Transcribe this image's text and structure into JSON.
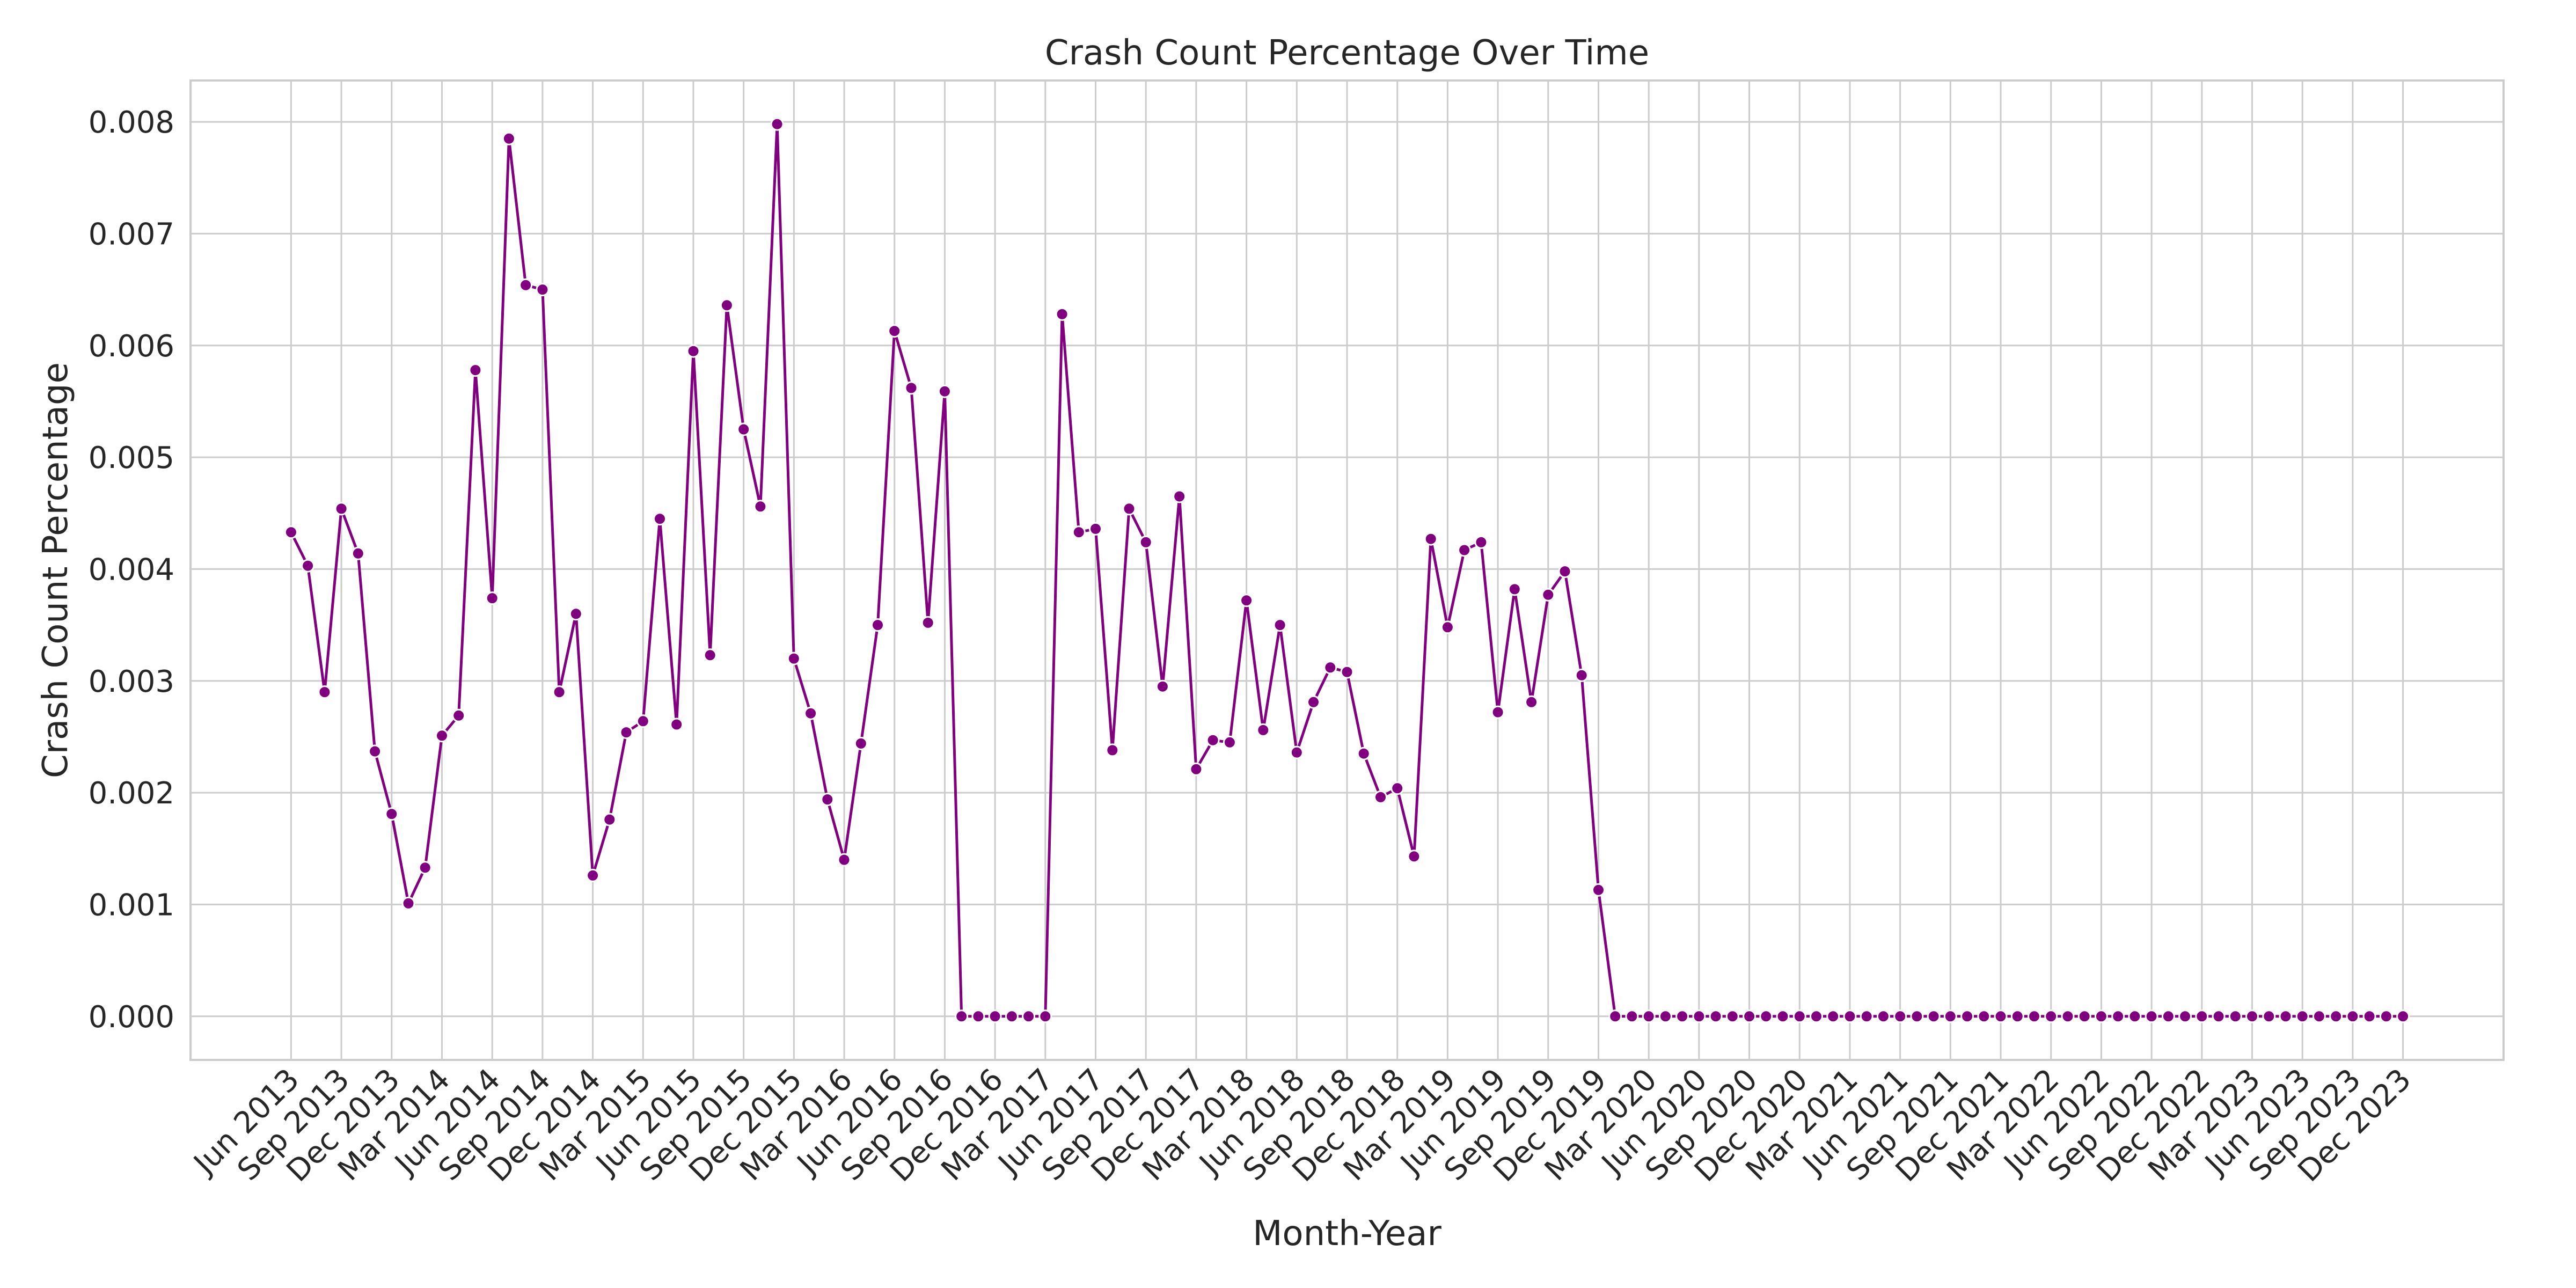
{
  "chart_data": {
    "type": "line",
    "title": "Crash Count Percentage Over Time",
    "xlabel": "Month-Year",
    "ylabel": "Crash Count Percentage",
    "ylim": [
      -0.00039,
      0.00837
    ],
    "xlim": [
      "2012-12",
      "2024-06"
    ],
    "y_ticks": [
      "0.000",
      "0.001",
      "0.002",
      "0.003",
      "0.004",
      "0.005",
      "0.006",
      "0.007",
      "0.008"
    ],
    "x_ticks": [
      "Jun 2013",
      "Sep 2013",
      "Dec 2013",
      "Mar 2014",
      "Jun 2014",
      "Sep 2014",
      "Dec 2014",
      "Mar 2015",
      "Jun 2015",
      "Sep 2015",
      "Dec 2015",
      "Mar 2016",
      "Jun 2016",
      "Sep 2016",
      "Dec 2016",
      "Mar 2017",
      "Jun 2017",
      "Sep 2017",
      "Dec 2017",
      "Mar 2018",
      "Jun 2018",
      "Sep 2018",
      "Dec 2018",
      "Mar 2019",
      "Jun 2019",
      "Sep 2019",
      "Dec 2019",
      "Mar 2020",
      "Jun 2020",
      "Sep 2020",
      "Dec 2020",
      "Mar 2021",
      "Jun 2021",
      "Sep 2021",
      "Dec 2021",
      "Mar 2022",
      "Jun 2022",
      "Sep 2022",
      "Dec 2022",
      "Mar 2023",
      "Jun 2023",
      "Sep 2023",
      "Dec 2023"
    ],
    "grid": true,
    "series": [
      {
        "color": "#800080",
        "x": [
          "2013-06",
          "2013-07",
          "2013-08",
          "2013-09",
          "2013-10",
          "2013-11",
          "2013-12",
          "2014-01",
          "2014-02",
          "2014-03",
          "2014-04",
          "2014-05",
          "2014-06",
          "2014-07",
          "2014-08",
          "2014-09",
          "2014-10",
          "2014-11",
          "2014-12",
          "2015-01",
          "2015-02",
          "2015-03",
          "2015-04",
          "2015-05",
          "2015-06",
          "2015-07",
          "2015-08",
          "2015-09",
          "2015-10",
          "2015-11",
          "2015-12",
          "2016-01",
          "2016-02",
          "2016-03",
          "2016-04",
          "2016-05",
          "2016-06",
          "2016-07",
          "2016-08",
          "2016-09",
          "2016-10",
          "2016-11",
          "2016-12",
          "2017-01",
          "2017-02",
          "2017-03",
          "2017-04",
          "2017-05",
          "2017-06",
          "2017-07",
          "2017-08",
          "2017-09",
          "2017-10",
          "2017-11",
          "2017-12",
          "2018-01",
          "2018-02",
          "2018-03",
          "2018-04",
          "2018-05",
          "2018-06",
          "2018-07",
          "2018-08",
          "2018-09",
          "2018-10",
          "2018-11",
          "2018-12",
          "2019-01",
          "2019-02",
          "2019-03",
          "2019-04",
          "2019-05",
          "2019-06",
          "2019-07",
          "2019-08",
          "2019-09",
          "2019-10",
          "2019-11",
          "2019-12",
          "2020-01",
          "2020-02",
          "2020-03",
          "2020-04",
          "2020-05",
          "2020-06",
          "2020-07",
          "2020-08",
          "2020-09",
          "2020-10",
          "2020-11",
          "2020-12",
          "2021-01",
          "2021-02",
          "2021-03",
          "2021-04",
          "2021-05",
          "2021-06",
          "2021-07",
          "2021-08",
          "2021-09",
          "2021-10",
          "2021-11",
          "2021-12",
          "2022-01",
          "2022-02",
          "2022-03",
          "2022-04",
          "2022-05",
          "2022-06",
          "2022-07",
          "2022-08",
          "2022-09",
          "2022-10",
          "2022-11",
          "2022-12",
          "2023-01",
          "2023-02",
          "2023-03",
          "2023-04",
          "2023-05",
          "2023-06",
          "2023-07",
          "2023-08",
          "2023-09",
          "2023-10",
          "2023-11",
          "2023-12"
        ],
        "y": [
          0.00433,
          0.00403,
          0.0029,
          0.00454,
          0.00414,
          0.00237,
          0.00181,
          0.00101,
          0.00133,
          0.00251,
          0.00269,
          0.00578,
          0.00374,
          0.00785,
          0.00654,
          0.0065,
          0.0029,
          0.0036,
          0.00126,
          0.00176,
          0.00254,
          0.00264,
          0.00445,
          0.00261,
          0.00595,
          0.00323,
          0.00636,
          0.00525,
          0.00456,
          0.00798,
          0.0032,
          0.00271,
          0.00194,
          0.0014,
          0.00244,
          0.0035,
          0.00613,
          0.00562,
          0.00352,
          0.00559,
          0,
          0,
          0,
          0,
          0,
          0,
          0.00628,
          0.00433,
          0.00436,
          0.00238,
          0.00454,
          0.00424,
          0.00295,
          0.00465,
          0.00221,
          0.00247,
          0.00245,
          0.00372,
          0.00256,
          0.0035,
          0.00236,
          0.00281,
          0.00312,
          0.00308,
          0.00235,
          0.00196,
          0.00204,
          0.00143,
          0.00427,
          0.00348,
          0.00417,
          0.00424,
          0.00272,
          0.00382,
          0.00281,
          0.00377,
          0.00398,
          0.00305,
          0.00113,
          0,
          0,
          0,
          0,
          0,
          0,
          0,
          0,
          0,
          0,
          0,
          0,
          0,
          0,
          0,
          0,
          0,
          0,
          0,
          0,
          0,
          0,
          0,
          0,
          0,
          0,
          0,
          0,
          0,
          0,
          0,
          0,
          0,
          0,
          0,
          0,
          0,
          0,
          0,
          0,
          0,
          0,
          0,
          0,
          0,
          0,
          0,
          0
        ]
      }
    ]
  }
}
